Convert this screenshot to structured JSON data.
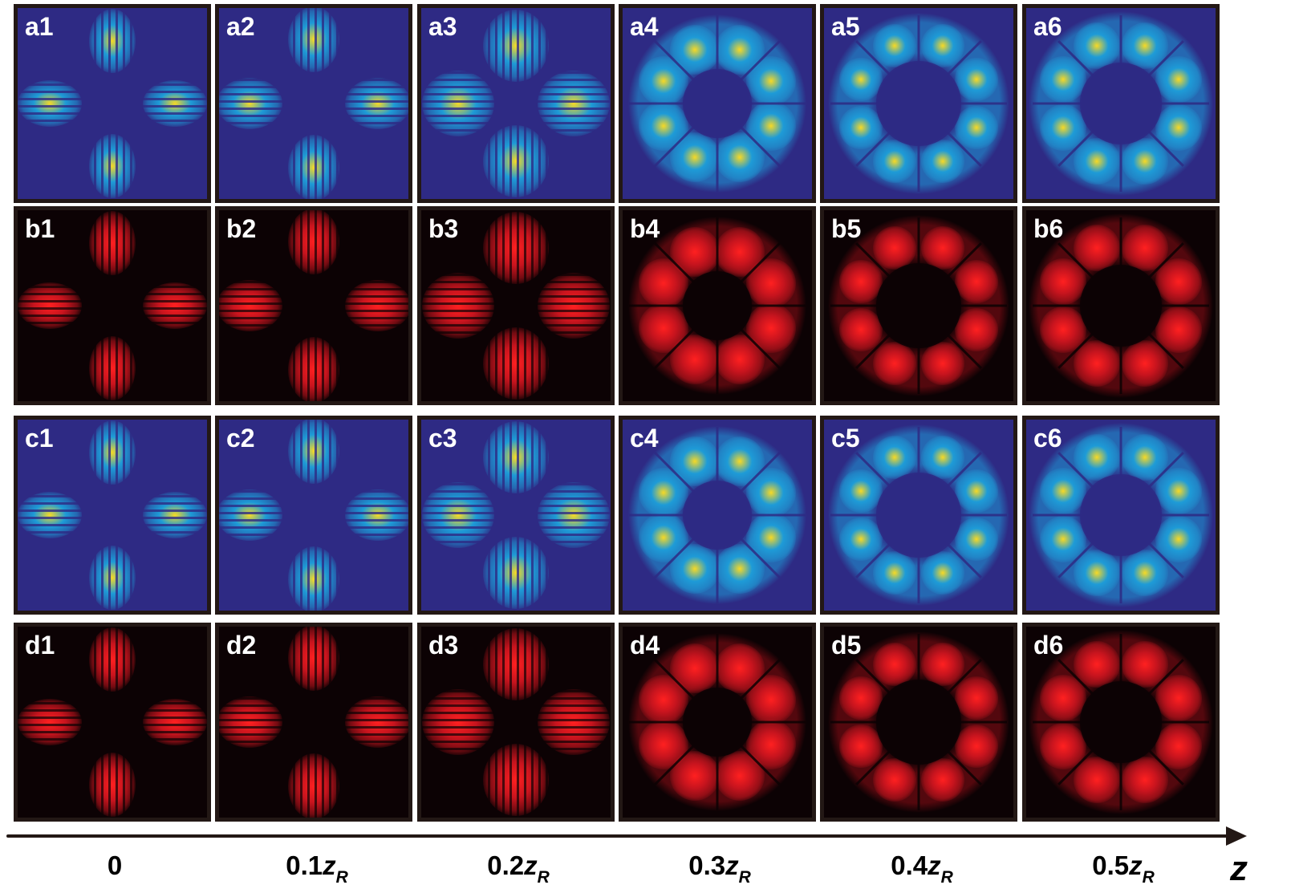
{
  "figure": {
    "rows": [
      {
        "id": "a",
        "type": "simulation",
        "colormap": "parula",
        "background": "#2E2A84",
        "labels": [
          "a1",
          "a2",
          "a3",
          "a4",
          "a5",
          "a6"
        ]
      },
      {
        "id": "b",
        "type": "experiment",
        "colormap": "red",
        "background": "#0C0204",
        "labels": [
          "b1",
          "b2",
          "b3",
          "b4",
          "b5",
          "b6"
        ]
      },
      {
        "id": "c",
        "type": "simulation",
        "colormap": "parula",
        "background": "#2E2A84",
        "labels": [
          "c1",
          "c2",
          "c3",
          "c4",
          "c5",
          "c6"
        ]
      },
      {
        "id": "d",
        "type": "experiment",
        "colormap": "red",
        "background": "#0C0204",
        "labels": [
          "d1",
          "d2",
          "d3",
          "d4",
          "d5",
          "d6"
        ]
      }
    ],
    "columns": [
      {
        "z_value": "0",
        "z_main": "0",
        "z_sub": ""
      },
      {
        "z_value": "0.1zR",
        "z_main": "0.1",
        "z_sym": "z",
        "z_sub": "R"
      },
      {
        "z_value": "0.2zR",
        "z_main": "0.2",
        "z_sym": "z",
        "z_sub": "R"
      },
      {
        "z_value": "0.3zR",
        "z_main": "0.3",
        "z_sym": "z",
        "z_sub": "R"
      },
      {
        "z_value": "0.4zR",
        "z_main": "0.4",
        "z_sym": "z",
        "z_sub": "R"
      },
      {
        "z_value": "0.5zR",
        "z_main": "0.5",
        "z_sym": "z",
        "z_sub": "R"
      }
    ],
    "axis": {
      "label": "z",
      "color": "#231815"
    },
    "colors": {
      "sim_bg": "#2E2A84",
      "sim_mid": "#1E9BD7",
      "sim_peak": "#F7D925",
      "exp_bg": "#0C0204",
      "exp_peak": "#FF2020",
      "border": "#231815"
    }
  }
}
